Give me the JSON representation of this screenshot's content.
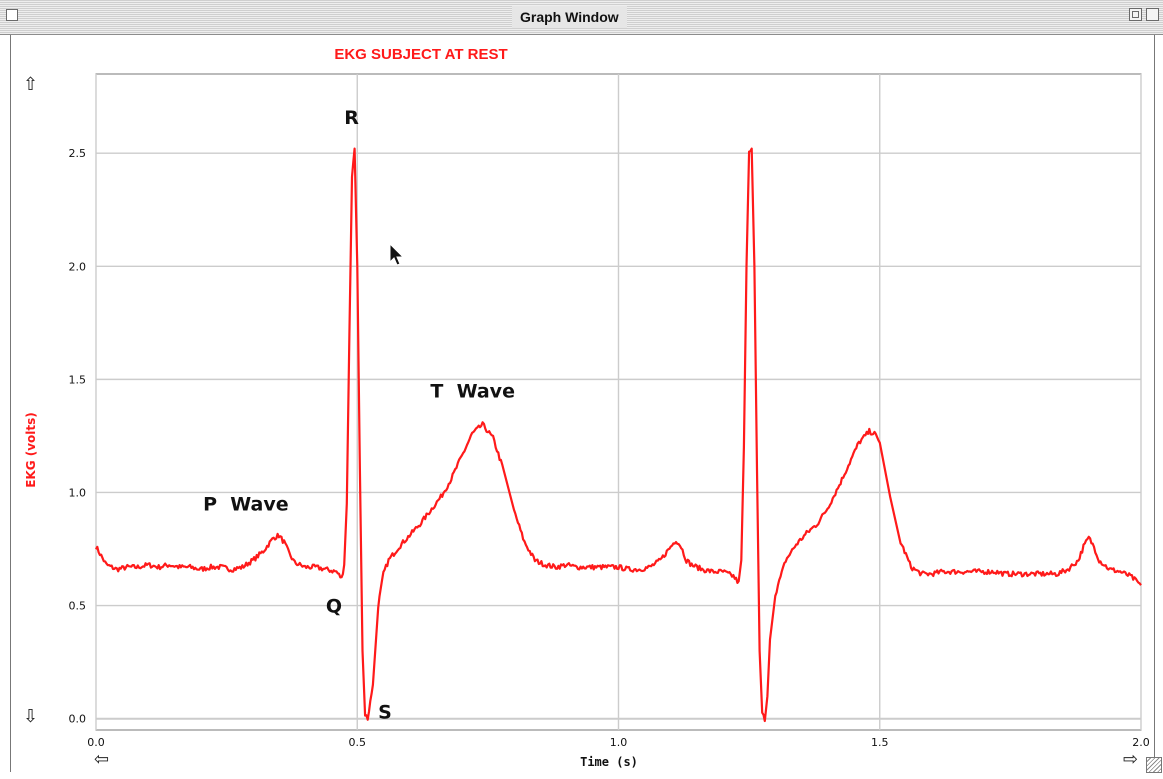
{
  "window": {
    "title": "Graph Window"
  },
  "chart_data": {
    "type": "line",
    "title": "EKG SUBJECT AT REST",
    "xlabel": "Time (s)",
    "ylabel": "EKG (volts)",
    "xlim": [
      0.0,
      2.0
    ],
    "ylim": [
      -0.05,
      2.85
    ],
    "x_ticks": [
      "0.0",
      "0.5",
      "1.0",
      "1.5",
      "2.0"
    ],
    "y_ticks": [
      "0.0",
      "0.5",
      "1.0",
      "1.5",
      "2.0",
      "2.5"
    ],
    "grid": true,
    "line_color": "#ff1a1a",
    "title_color": "#ff1a1a",
    "series": [
      {
        "x": [
          0.0,
          0.02,
          0.04,
          0.06,
          0.08,
          0.1,
          0.12,
          0.14,
          0.16,
          0.18,
          0.2,
          0.22,
          0.24,
          0.26,
          0.28,
          0.3,
          0.32,
          0.34,
          0.35,
          0.36,
          0.37,
          0.38,
          0.39,
          0.4,
          0.42,
          0.44,
          0.46,
          0.47,
          0.475,
          0.48,
          0.485,
          0.49,
          0.495,
          0.5,
          0.505,
          0.51,
          0.515,
          0.52,
          0.53,
          0.54,
          0.55,
          0.56,
          0.58,
          0.6,
          0.62,
          0.64,
          0.66,
          0.68,
          0.7,
          0.72,
          0.74,
          0.76,
          0.78,
          0.8,
          0.82,
          0.84,
          0.86,
          0.88,
          0.9,
          0.92,
          0.94,
          0.96,
          0.98,
          1.0,
          1.02,
          1.04,
          1.06,
          1.08,
          1.1,
          1.11,
          1.12,
          1.13,
          1.14,
          1.16,
          1.18,
          1.2,
          1.22,
          1.23,
          1.235,
          1.24,
          1.245,
          1.25,
          1.255,
          1.26,
          1.265,
          1.27,
          1.275,
          1.28,
          1.285,
          1.29,
          1.3,
          1.32,
          1.34,
          1.36,
          1.38,
          1.4,
          1.42,
          1.44,
          1.46,
          1.48,
          1.49,
          1.5,
          1.52,
          1.54,
          1.56,
          1.58,
          1.6,
          1.62,
          1.64,
          1.66,
          1.68,
          1.7,
          1.72,
          1.74,
          1.76,
          1.78,
          1.8,
          1.82,
          1.84,
          1.86,
          1.88,
          1.89,
          1.9,
          1.91,
          1.92,
          1.94,
          1.96,
          1.98,
          2.0
        ],
        "values": [
          0.76,
          0.68,
          0.66,
          0.67,
          0.67,
          0.68,
          0.67,
          0.68,
          0.67,
          0.67,
          0.66,
          0.67,
          0.67,
          0.66,
          0.67,
          0.7,
          0.74,
          0.8,
          0.81,
          0.78,
          0.73,
          0.69,
          0.68,
          0.67,
          0.67,
          0.66,
          0.65,
          0.62,
          0.68,
          0.95,
          1.7,
          2.4,
          2.52,
          2.0,
          1.1,
          0.3,
          0.02,
          0.0,
          0.15,
          0.5,
          0.64,
          0.7,
          0.76,
          0.81,
          0.86,
          0.92,
          0.98,
          1.06,
          1.16,
          1.26,
          1.3,
          1.24,
          1.1,
          0.92,
          0.78,
          0.7,
          0.68,
          0.67,
          0.68,
          0.67,
          0.67,
          0.67,
          0.67,
          0.67,
          0.66,
          0.66,
          0.67,
          0.7,
          0.76,
          0.79,
          0.76,
          0.7,
          0.68,
          0.66,
          0.65,
          0.65,
          0.63,
          0.6,
          0.7,
          1.2,
          2.0,
          2.5,
          2.52,
          2.0,
          1.1,
          0.3,
          0.02,
          0.0,
          0.1,
          0.35,
          0.55,
          0.7,
          0.77,
          0.82,
          0.86,
          0.93,
          1.02,
          1.12,
          1.22,
          1.27,
          1.26,
          1.22,
          0.98,
          0.78,
          0.67,
          0.64,
          0.64,
          0.65,
          0.65,
          0.65,
          0.65,
          0.65,
          0.65,
          0.64,
          0.64,
          0.64,
          0.64,
          0.64,
          0.64,
          0.66,
          0.7,
          0.76,
          0.8,
          0.76,
          0.7,
          0.66,
          0.65,
          0.63,
          0.59
        ]
      }
    ],
    "annotations": [
      {
        "text": "R",
        "x": 0.475,
        "y": 2.63
      },
      {
        "text": "P  Wave",
        "x": 0.205,
        "y": 0.92
      },
      {
        "text": "Q",
        "x": 0.44,
        "y": 0.47
      },
      {
        "text": "S",
        "x": 0.54,
        "y": 0.0
      },
      {
        "text": "T  Wave",
        "x": 0.64,
        "y": 1.42
      }
    ]
  },
  "icons": {
    "scroll_up": "⇧",
    "scroll_down": "⇩",
    "scroll_left": "⇦",
    "scroll_right": "⇨"
  }
}
